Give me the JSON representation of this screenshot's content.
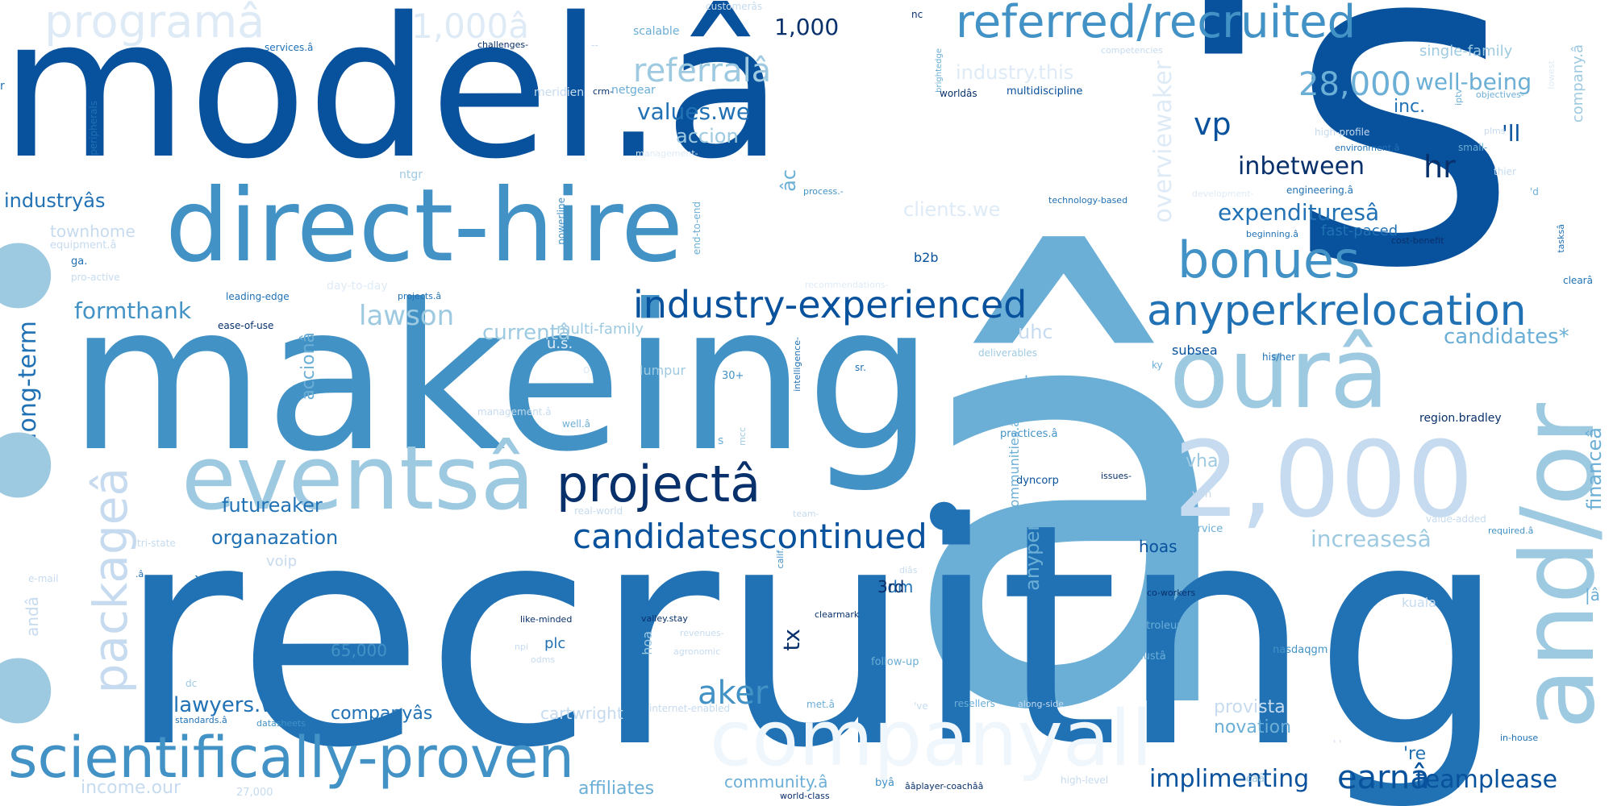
{
  "palette": {
    "darkest": "#08306b",
    "dark": "#08519c",
    "mid_dark": "#2171b5",
    "mid": "#4292c6",
    "light_mid": "#6baed6",
    "light": "#9ecae1",
    "lighter": "#c6dbef",
    "palest": "#deebf7",
    "faint": "#eff6fc",
    "background": "#ffffff"
  },
  "words": {
    "a_big": "â",
    "apos_s": "'s",
    "recruitng": "recruitng",
    "makeing": "makeing",
    "model": "model.â",
    "direct_hire": "direct-hire",
    "eventsa": "eventsâ",
    "projecta": "projectâ",
    "scientifically_proven": "scientifically-proven",
    "and_or": "and/or",
    "companyall": "companyall",
    "two_thousand": "2,000",
    "oura": "ourâ",
    "referred_recruited": "referred/recruited",
    "anyperkrelocation": "anyperkrelocation",
    "industry_experienced": "industry-experienced",
    "bonues": "bonues",
    "candidatescontinued": "candidatescontinued",
    "programa": "programâ",
    "packagea": "packageâ",
    "aker": "aker",
    "earna": "earnâ",
    "implimenting": "implimenting",
    "teamplease": "teamplease",
    "twenty_eight_thousand": "28,000",
    "referrala": "referralâ",
    "values_we": "values.we",
    "lawson": "lawson",
    "formthank": "formthank",
    "one_thousand_a": "1,000â",
    "one_thousand": "1,000",
    "vp": "vp",
    "inbetween": "inbetween",
    "hr": "hr",
    "expendituresa": "expendituresâ",
    "well_being": "well-being",
    "apos_ll": "'ll",
    "inc": "inc.",
    "currenta": "currentâ",
    "lawyers_we": "lawyers.we",
    "companya_s": "companyâs",
    "industrya_s": "industryâs",
    "long_term": "long-term",
    "futureaker": "futureaker",
    "organazation": "organazation",
    "accion": "accion",
    "acciona": "accionâ",
    "overviewaker": "overviewaker",
    "uhc": "uhc",
    "candidates_star": "candidates*",
    "increasesa": "increasesâ",
    "financea": "financeâ",
    "vha": "vha",
    "hse": "hse",
    "odm": "odm",
    "tx": "tx",
    "three_rd": "3rd",
    "anyperk": "anyperk",
    "plc": "plc",
    "sixty_five_thousand": "65,000",
    "affiliates": "affiliates",
    "community_a": "community.â",
    "provista": "provista",
    "novation": "novation",
    "apos_re": "'re",
    "income_our": "income.our",
    "industry_this": "industry.this",
    "clients_we": "clients.we",
    "single_family": "single-family",
    "company_a": "company.â",
    "townhome": "townhome",
    "fast_paced": "fast-paced",
    "multi_family": "multi-family",
    "hoas": "hoas",
    "subsea": "subsea",
    "b2b": "b2b",
    "region_bradley": "region.bradley",
    "cartwright": "cartwright",
    "voip": "voip",
    "anda": "andâ",
    "pipe_a": "|â",
    "backticks": "``",
    "scalable": "scalable",
    "netgear": "netgear",
    "meridien": "meridien",
    "services_a": "services.â",
    "challenges": "challenges-",
    "customera_s": "customerâs",
    "nc": "nc",
    "brightedge": "brightedge",
    "competencies": "competencies",
    "lowest": "lowest",
    "peripherals": "peripherals",
    "worlda_s": "worldâs",
    "multidiscipline": "multidiscipline",
    "iptv": "iptv",
    "objectives": "objectives-",
    "high_profile": "high-profile",
    "small": "small-",
    "environment_a": "environment.â",
    "technology_based": "technology-based",
    "engineering_a": "engineering.â",
    "cost_benefit": "cost-benefit",
    "tasksa_c": "tasksâ",
    "beginning_a": "beginning.â",
    "leading_edge": "leading-edge",
    "ease_of_use": "ease-of-use",
    "projects_a": "projects.â",
    "equipment_a": "equipment.â",
    "ga": "ga.",
    "deliverables": "deliverables",
    "his_her": "his/her",
    "ky": "ky",
    "lumpur": "lumpur",
    "thirty_plus": "30+",
    "sr": "sr.",
    "intelligence": "intelligence-",
    "management_a": "management.â",
    "well_a": "well.â",
    "practices_a": "practices.â",
    "dyncorp": "dyncorp",
    "issues": "issues-",
    "full_service": "full-service",
    "required_a": "required.â",
    "value_added": "value-added",
    "vpn": "vpn",
    "co_workers": "co-workers",
    "clienta_s": "clientâs",
    "petroleuma": "petroleumâ",
    "nasdaqgm": "nasdaqgm",
    "kuala": "kuala",
    "musta": "mustâ",
    "in_house": "in-house",
    "caa": "caâ",
    "high_level": "high-level",
    "bya": "byâ",
    "player_coach": "ââplayer-coachââ",
    "world_class": "world-class",
    "resellers": "resellers",
    "along_side": "along-side",
    "met_a": "met.â",
    "internet_enabled": "internet-enabled",
    "standards_a": "standards.â",
    "datasheets": "datasheets",
    "like_minded": "like-minded",
    "valley_stay": "valley.stay",
    "follow_up": "follow-up",
    "clearmark": "clearmark",
    "calif": "calif.",
    "npi": "npi",
    "odms": "odms",
    "agronomic": "agronomic",
    "dc": "dc",
    "e_mail": "e-mail",
    "tri_state": "tri-state",
    "real_world": "real-world",
    "team_dash": "team-",
    "powerline": "powerline",
    "end_to_end": "end-to-end",
    "crm": "crm-",
    "ntgr": "ntgr",
    "pro_active": "pro-active",
    "apos_d": "'d",
    "thier": "thier",
    "clear_a": "clearâ",
    "teams_a": "team.â",
    "communities_a": "communities.â",
    "s_small": "s",
    "mcc": "mcc",
    "hoa": "hoa",
    "twenty_seven_thousand": "27,000",
    "apos_ve": "'ve",
    "dot_a": ".â",
    "dia_s": "diâs",
    "day_to_day": "day-to-day",
    "recommendations": "recommendations-",
    "management_dash": "management-",
    "process_dash": "process.-",
    "a_c": "âc",
    "plms": "plms",
    "development": "development-",
    "revenues": "revenues-",
    "u_s": "u.s.",
    "dash_dash": "--",
    "o_letter": "o",
    "r_letter": "r",
    "apostrophes": "' '",
    "dot1": "•",
    "dot2": "•",
    "dot3": "•",
    "dot4": "•"
  }
}
